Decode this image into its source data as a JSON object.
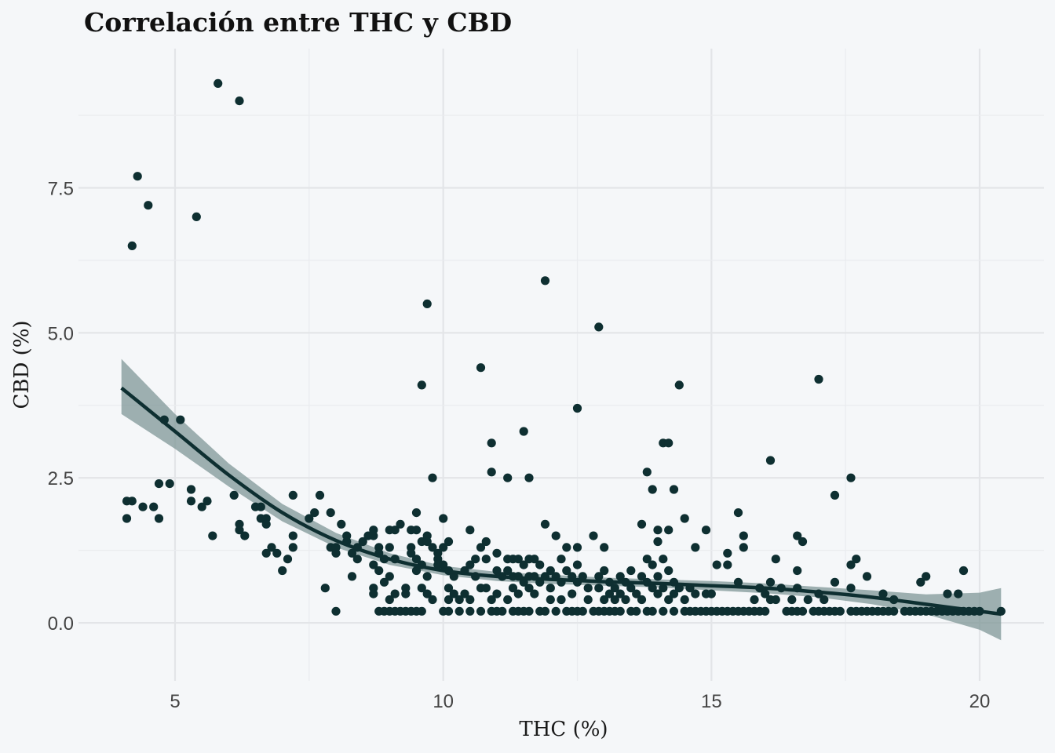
{
  "chart_data": {
    "type": "scatter",
    "title": "Correlación entre THC y CBD",
    "xlabel": "THC (%)",
    "ylabel": "CBD (%)",
    "xlim": [
      3.2,
      21.2
    ],
    "ylim": [
      -1.0,
      9.9
    ],
    "x_ticks": [
      5,
      10,
      15,
      20
    ],
    "x_tick_labels": [
      "5",
      "10",
      "15",
      "20"
    ],
    "y_ticks": [
      0,
      2.5,
      5,
      7.5
    ],
    "y_tick_labels": [
      "0.0",
      "2.5",
      "5.0",
      "7.5"
    ],
    "grid": true,
    "legend": "none",
    "colors": {
      "points": "#0e2f31",
      "trend": "#0e2f31",
      "ribbon": "#7f9797",
      "background": "#f5f7f9"
    },
    "points": [
      [
        5.8,
        9.3
      ],
      [
        6.2,
        9.0
      ],
      [
        4.3,
        7.7
      ],
      [
        4.5,
        7.2
      ],
      [
        5.4,
        7.0
      ],
      [
        4.2,
        6.5
      ],
      [
        11.9,
        5.9
      ],
      [
        9.7,
        5.5
      ],
      [
        12.9,
        5.1
      ],
      [
        10.7,
        4.4
      ],
      [
        17.0,
        4.2
      ],
      [
        9.6,
        4.1
      ],
      [
        14.4,
        4.1
      ],
      [
        12.5,
        3.7
      ],
      [
        4.8,
        3.5
      ],
      [
        5.1,
        3.5
      ],
      [
        11.5,
        3.3
      ],
      [
        10.9,
        3.1
      ],
      [
        14.1,
        3.1
      ],
      [
        14.2,
        3.1
      ],
      [
        16.1,
        2.8
      ],
      [
        9.8,
        2.5
      ],
      [
        10.9,
        2.6
      ],
      [
        11.2,
        2.5
      ],
      [
        11.6,
        2.5
      ],
      [
        13.8,
        2.6
      ],
      [
        17.6,
        2.5
      ],
      [
        13.9,
        2.3
      ],
      [
        14.3,
        2.3
      ],
      [
        17.3,
        2.2
      ],
      [
        4.1,
        1.8
      ],
      [
        4.1,
        2.1
      ],
      [
        4.2,
        2.1
      ],
      [
        4.4,
        2.0
      ],
      [
        4.6,
        2.0
      ],
      [
        4.7,
        2.4
      ],
      [
        4.7,
        1.8
      ],
      [
        4.9,
        2.4
      ],
      [
        5.3,
        2.3
      ],
      [
        5.3,
        2.1
      ],
      [
        5.5,
        2.0
      ],
      [
        5.6,
        2.1
      ],
      [
        5.7,
        1.5
      ],
      [
        6.1,
        2.2
      ],
      [
        6.2,
        1.7
      ],
      [
        6.2,
        1.6
      ],
      [
        6.3,
        1.5
      ],
      [
        6.5,
        2.0
      ],
      [
        6.6,
        2.0
      ],
      [
        6.6,
        1.8
      ],
      [
        6.7,
        1.8
      ],
      [
        6.7,
        1.7
      ],
      [
        6.7,
        1.2
      ],
      [
        6.8,
        1.3
      ],
      [
        6.9,
        1.2
      ],
      [
        7.0,
        0.9
      ],
      [
        7.1,
        1.1
      ],
      [
        7.2,
        1.3
      ],
      [
        7.2,
        1.5
      ],
      [
        7.2,
        2.2
      ],
      [
        7.5,
        1.8
      ],
      [
        7.6,
        1.9
      ],
      [
        7.7,
        2.2
      ],
      [
        7.8,
        0.6
      ],
      [
        7.9,
        1.9
      ],
      [
        7.9,
        1.3
      ],
      [
        8.0,
        1.3
      ],
      [
        8.0,
        1.2
      ],
      [
        8.0,
        0.2
      ],
      [
        8.1,
        1.7
      ],
      [
        8.2,
        1.4
      ],
      [
        8.2,
        1.5
      ],
      [
        8.3,
        0.8
      ],
      [
        8.3,
        1.2
      ],
      [
        8.4,
        1.3
      ],
      [
        8.4,
        1.1
      ],
      [
        8.5,
        1.4
      ],
      [
        8.6,
        1.5
      ],
      [
        8.7,
        1.5
      ],
      [
        8.7,
        1.6
      ],
      [
        8.7,
        1.0
      ],
      [
        8.7,
        0.6
      ],
      [
        8.7,
        0.5
      ],
      [
        8.8,
        1.3
      ],
      [
        8.8,
        1.2
      ],
      [
        8.8,
        0.9
      ],
      [
        8.8,
        0.2
      ],
      [
        8.9,
        0.7
      ],
      [
        8.9,
        1.1
      ],
      [
        8.9,
        0.2
      ],
      [
        9.0,
        1.6
      ],
      [
        9.0,
        1.3
      ],
      [
        9.0,
        0.8
      ],
      [
        9.0,
        0.4
      ],
      [
        9.0,
        0.2
      ],
      [
        9.1,
        1.6
      ],
      [
        9.1,
        1.1
      ],
      [
        9.1,
        0.5
      ],
      [
        9.1,
        0.2
      ],
      [
        9.2,
        1.7
      ],
      [
        9.2,
        0.2
      ],
      [
        9.3,
        0.6
      ],
      [
        9.3,
        0.5
      ],
      [
        9.3,
        0.2
      ],
      [
        9.4,
        1.6
      ],
      [
        9.4,
        1.3
      ],
      [
        9.4,
        1.2
      ],
      [
        9.4,
        0.2
      ],
      [
        9.5,
        1.9
      ],
      [
        9.5,
        1.6
      ],
      [
        9.5,
        1.1
      ],
      [
        9.5,
        0.9
      ],
      [
        9.5,
        0.2
      ],
      [
        9.6,
        1.4
      ],
      [
        9.6,
        1.0
      ],
      [
        9.6,
        0.6
      ],
      [
        9.6,
        0.2
      ],
      [
        9.7,
        1.5
      ],
      [
        9.7,
        1.4
      ],
      [
        9.7,
        0.8
      ],
      [
        9.7,
        0.5
      ],
      [
        9.8,
        1.3
      ],
      [
        9.8,
        0.4
      ],
      [
        9.9,
        1.2
      ],
      [
        9.9,
        1.1
      ],
      [
        9.9,
        1.0
      ],
      [
        10.0,
        1.8
      ],
      [
        10.0,
        1.3
      ],
      [
        10.0,
        1.0
      ],
      [
        10.0,
        0.2
      ],
      [
        10.1,
        1.4
      ],
      [
        10.1,
        0.9
      ],
      [
        10.1,
        0.6
      ],
      [
        10.1,
        0.4
      ],
      [
        10.1,
        0.2
      ],
      [
        10.2,
        0.8
      ],
      [
        10.2,
        0.5
      ],
      [
        10.3,
        0.4
      ],
      [
        10.3,
        0.2
      ],
      [
        10.4,
        0.9
      ],
      [
        10.4,
        0.5
      ],
      [
        10.5,
        1.6
      ],
      [
        10.5,
        1.0
      ],
      [
        10.5,
        0.4
      ],
      [
        10.5,
        0.2
      ],
      [
        10.6,
        1.1
      ],
      [
        10.6,
        0.8
      ],
      [
        10.7,
        1.3
      ],
      [
        10.7,
        0.6
      ],
      [
        10.7,
        0.2
      ],
      [
        10.8,
        1.4
      ],
      [
        10.8,
        1.1
      ],
      [
        10.8,
        0.6
      ],
      [
        10.9,
        0.4
      ],
      [
        10.9,
        0.2
      ],
      [
        11.0,
        1.2
      ],
      [
        11.0,
        0.9
      ],
      [
        11.0,
        0.5
      ],
      [
        11.0,
        0.2
      ],
      [
        11.1,
        0.8
      ],
      [
        11.1,
        0.2
      ],
      [
        11.2,
        1.1
      ],
      [
        11.2,
        0.9
      ],
      [
        11.2,
        0.4
      ],
      [
        11.3,
        1.1
      ],
      [
        11.3,
        0.8
      ],
      [
        11.3,
        0.6
      ],
      [
        11.3,
        0.2
      ],
      [
        11.4,
        1.1
      ],
      [
        11.4,
        0.8
      ],
      [
        11.4,
        0.5
      ],
      [
        11.4,
        0.2
      ],
      [
        11.5,
        1.0
      ],
      [
        11.5,
        0.7
      ],
      [
        11.5,
        0.2
      ],
      [
        11.6,
        1.1
      ],
      [
        11.6,
        0.8
      ],
      [
        11.6,
        0.6
      ],
      [
        11.6,
        0.2
      ],
      [
        11.7,
        1.1
      ],
      [
        11.7,
        0.8
      ],
      [
        11.7,
        0.5
      ],
      [
        11.8,
        1.0
      ],
      [
        11.8,
        0.7
      ],
      [
        11.8,
        0.2
      ],
      [
        11.9,
        1.7
      ],
      [
        11.9,
        0.8
      ],
      [
        11.9,
        0.2
      ],
      [
        12.0,
        0.9
      ],
      [
        12.0,
        0.6
      ],
      [
        12.0,
        0.4
      ],
      [
        12.1,
        1.5
      ],
      [
        12.1,
        0.8
      ],
      [
        12.1,
        0.2
      ],
      [
        12.2,
        1.1
      ],
      [
        12.2,
        0.7
      ],
      [
        12.2,
        0.4
      ],
      [
        12.3,
        1.3
      ],
      [
        12.3,
        0.9
      ],
      [
        12.3,
        0.2
      ],
      [
        12.4,
        0.8
      ],
      [
        12.4,
        0.5
      ],
      [
        12.4,
        0.2
      ],
      [
        12.5,
        1.3
      ],
      [
        12.5,
        1.0
      ],
      [
        12.5,
        0.7
      ],
      [
        12.5,
        0.2
      ],
      [
        12.6,
        0.8
      ],
      [
        12.6,
        0.2
      ],
      [
        12.7,
        0.6
      ],
      [
        12.7,
        0.4
      ],
      [
        12.8,
        1.5
      ],
      [
        12.8,
        0.2
      ],
      [
        12.9,
        0.8
      ],
      [
        12.9,
        0.6
      ],
      [
        12.9,
        0.2
      ],
      [
        13.0,
        1.3
      ],
      [
        13.0,
        0.9
      ],
      [
        13.0,
        0.4
      ],
      [
        13.0,
        0.2
      ],
      [
        13.1,
        0.7
      ],
      [
        13.1,
        0.5
      ],
      [
        13.1,
        0.2
      ],
      [
        13.2,
        0.6
      ],
      [
        13.2,
        0.4
      ],
      [
        13.2,
        0.2
      ],
      [
        13.3,
        0.8
      ],
      [
        13.3,
        0.5
      ],
      [
        13.3,
        0.2
      ],
      [
        13.4,
        0.7
      ],
      [
        13.4,
        0.4
      ],
      [
        13.5,
        0.9
      ],
      [
        13.5,
        0.6
      ],
      [
        13.5,
        0.2
      ],
      [
        13.6,
        0.5
      ],
      [
        13.6,
        0.2
      ],
      [
        13.7,
        1.7
      ],
      [
        13.7,
        0.8
      ],
      [
        13.7,
        0.4
      ],
      [
        13.8,
        1.1
      ],
      [
        13.8,
        0.7
      ],
      [
        13.8,
        0.2
      ],
      [
        13.9,
        1.0
      ],
      [
        13.9,
        0.6
      ],
      [
        13.9,
        0.2
      ],
      [
        14.0,
        1.6
      ],
      [
        14.0,
        1.4
      ],
      [
        14.0,
        0.8
      ],
      [
        14.0,
        0.5
      ],
      [
        14.1,
        1.1
      ],
      [
        14.1,
        0.6
      ],
      [
        14.1,
        0.2
      ],
      [
        14.2,
        1.6
      ],
      [
        14.2,
        0.9
      ],
      [
        14.2,
        0.4
      ],
      [
        14.3,
        0.7
      ],
      [
        14.3,
        0.5
      ],
      [
        14.3,
        0.2
      ],
      [
        14.4,
        0.6
      ],
      [
        14.5,
        1.8
      ],
      [
        14.5,
        0.4
      ],
      [
        14.5,
        0.2
      ],
      [
        14.6,
        0.6
      ],
      [
        14.6,
        0.2
      ],
      [
        14.7,
        1.3
      ],
      [
        14.7,
        0.5
      ],
      [
        14.7,
        0.2
      ],
      [
        14.8,
        0.2
      ],
      [
        14.9,
        1.6
      ],
      [
        14.9,
        0.5
      ],
      [
        14.9,
        0.2
      ],
      [
        15.0,
        0.5
      ],
      [
        15.0,
        0.2
      ],
      [
        15.1,
        1.0
      ],
      [
        15.1,
        0.2
      ],
      [
        15.2,
        0.2
      ],
      [
        15.3,
        1.2
      ],
      [
        15.3,
        1.0
      ],
      [
        15.3,
        0.2
      ],
      [
        15.4,
        0.2
      ],
      [
        15.5,
        1.9
      ],
      [
        15.5,
        0.7
      ],
      [
        15.5,
        0.2
      ],
      [
        15.6,
        1.5
      ],
      [
        15.6,
        1.3
      ],
      [
        15.6,
        0.2
      ],
      [
        15.7,
        0.2
      ],
      [
        15.8,
        0.4
      ],
      [
        15.8,
        0.2
      ],
      [
        15.9,
        0.6
      ],
      [
        15.9,
        0.2
      ],
      [
        16.0,
        0.5
      ],
      [
        16.0,
        0.2
      ],
      [
        16.1,
        0.7
      ],
      [
        16.1,
        0.4
      ],
      [
        16.2,
        1.1
      ],
      [
        16.2,
        0.4
      ],
      [
        16.3,
        0.6
      ],
      [
        16.4,
        0.2
      ],
      [
        16.5,
        0.4
      ],
      [
        16.5,
        0.2
      ],
      [
        16.6,
        1.5
      ],
      [
        16.6,
        0.9
      ],
      [
        16.6,
        0.6
      ],
      [
        16.6,
        0.2
      ],
      [
        16.7,
        1.4
      ],
      [
        16.7,
        0.2
      ],
      [
        16.8,
        0.4
      ],
      [
        16.9,
        0.2
      ],
      [
        17.0,
        0.5
      ],
      [
        17.0,
        0.2
      ],
      [
        17.1,
        0.4
      ],
      [
        17.1,
        0.2
      ],
      [
        17.2,
        0.2
      ],
      [
        17.3,
        0.7
      ],
      [
        17.3,
        0.2
      ],
      [
        17.4,
        0.2
      ],
      [
        17.6,
        1.0
      ],
      [
        17.6,
        0.6
      ],
      [
        17.6,
        0.2
      ],
      [
        17.7,
        1.1
      ],
      [
        17.7,
        0.2
      ],
      [
        17.8,
        0.2
      ],
      [
        17.9,
        0.8
      ],
      [
        17.9,
        0.2
      ],
      [
        18.0,
        0.2
      ],
      [
        18.1,
        0.2
      ],
      [
        18.2,
        0.5
      ],
      [
        18.2,
        0.2
      ],
      [
        18.3,
        0.2
      ],
      [
        18.4,
        0.4
      ],
      [
        18.4,
        0.2
      ],
      [
        18.6,
        0.2
      ],
      [
        18.7,
        0.2
      ],
      [
        18.8,
        0.2
      ],
      [
        18.9,
        0.7
      ],
      [
        18.9,
        0.2
      ],
      [
        19.0,
        0.8
      ],
      [
        19.0,
        0.2
      ],
      [
        19.1,
        0.2
      ],
      [
        19.2,
        0.2
      ],
      [
        19.3,
        0.2
      ],
      [
        19.4,
        0.5
      ],
      [
        19.4,
        0.2
      ],
      [
        19.5,
        0.2
      ],
      [
        19.6,
        0.5
      ],
      [
        19.6,
        0.2
      ],
      [
        19.7,
        0.9
      ],
      [
        19.7,
        0.2
      ],
      [
        19.8,
        0.2
      ],
      [
        19.9,
        0.2
      ],
      [
        20.0,
        0.2
      ],
      [
        20.4,
        0.2
      ]
    ],
    "trend": {
      "x": [
        4.0,
        5.0,
        6.0,
        7.0,
        8.0,
        9.0,
        10.0,
        11.0,
        12.0,
        13.0,
        14.0,
        15.0,
        16.0,
        17.0,
        18.0,
        19.0,
        20.0,
        20.4
      ],
      "y": [
        4.05,
        3.3,
        2.55,
        1.9,
        1.42,
        1.1,
        0.9,
        0.8,
        0.75,
        0.71,
        0.68,
        0.64,
        0.6,
        0.53,
        0.44,
        0.32,
        0.2,
        0.15
      ],
      "lower": [
        3.6,
        3.0,
        2.35,
        1.75,
        1.3,
        1.0,
        0.82,
        0.72,
        0.67,
        0.64,
        0.61,
        0.56,
        0.51,
        0.44,
        0.32,
        0.15,
        -0.12,
        -0.3
      ],
      "upper": [
        4.55,
        3.6,
        2.75,
        2.05,
        1.55,
        1.2,
        0.98,
        0.88,
        0.83,
        0.78,
        0.75,
        0.72,
        0.68,
        0.62,
        0.56,
        0.49,
        0.52,
        0.6
      ]
    }
  }
}
